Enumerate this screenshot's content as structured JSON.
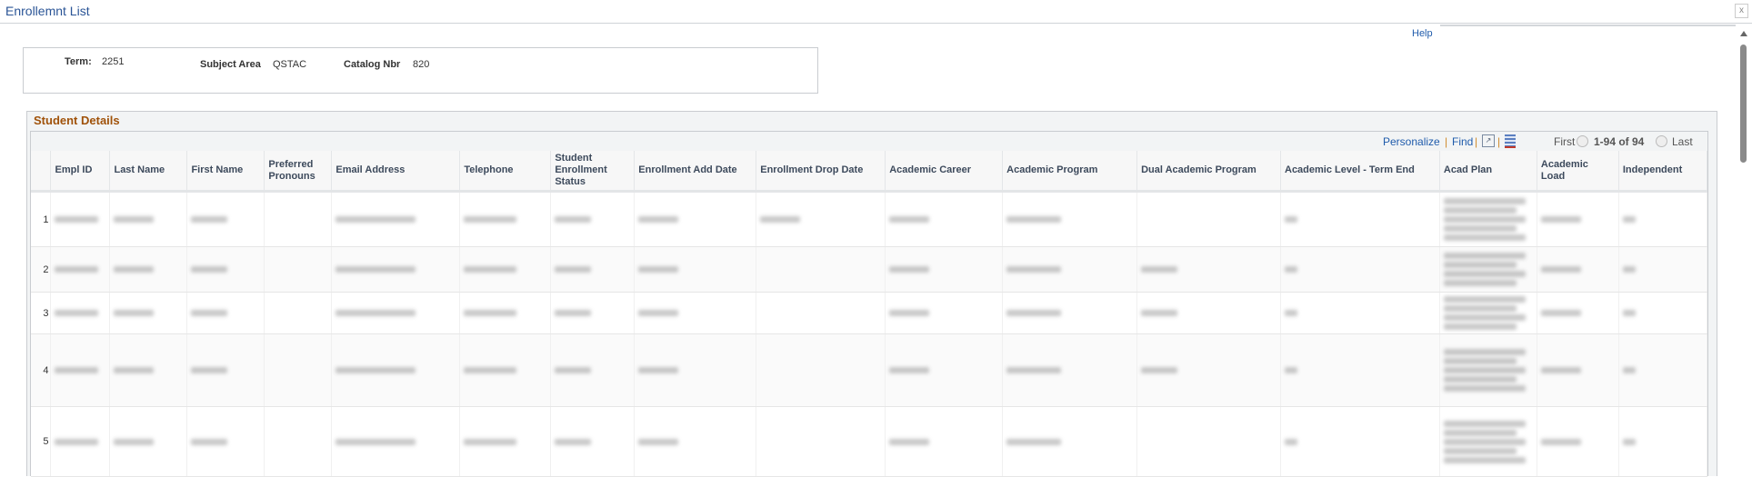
{
  "window": {
    "title": "Enrollemnt List",
    "close_label": "x",
    "help_label": "Help"
  },
  "criteria": {
    "term_label": "Term:",
    "term_value": "2251",
    "subject_label": "Subject Area",
    "subject_value": "QSTAC",
    "catalog_label": "Catalog Nbr",
    "catalog_value": "820"
  },
  "section": {
    "title": "Student Details"
  },
  "toolbar": {
    "personalize": "Personalize",
    "find": "Find",
    "first": "First",
    "range": "1-94 of 94",
    "last": "Last",
    "icons": [
      "zoom-view-icon",
      "download-spreadsheet-icon",
      "prev-arrow-icon",
      "next-arrow-icon"
    ]
  },
  "columns": [
    "",
    "Empl ID",
    "Last Name",
    "First Name",
    "Preferred Pronouns",
    "Email Address",
    "Telephone",
    "Student Enrollment Status",
    "Enrollment Add Date",
    "Enrollment Drop Date",
    "Academic Career",
    "Academic Program",
    "Dual Academic Program",
    "Academic Level - Term End",
    "Acad Plan",
    "Academic Load",
    "Independent"
  ],
  "rows": [
    {
      "num": "1",
      "redacted": [
        1,
        1,
        1,
        0,
        1,
        1,
        1,
        1,
        1,
        1,
        1,
        0,
        1,
        5,
        1,
        1
      ]
    },
    {
      "num": "2",
      "redacted": [
        1,
        1,
        1,
        0,
        1,
        1,
        1,
        1,
        0,
        1,
        1,
        1,
        1,
        4,
        1,
        1
      ]
    },
    {
      "num": "3",
      "redacted": [
        1,
        1,
        1,
        0,
        1,
        1,
        1,
        1,
        0,
        1,
        1,
        1,
        1,
        4,
        1,
        1
      ]
    },
    {
      "num": "4",
      "redacted": [
        1,
        1,
        1,
        0,
        1,
        1,
        1,
        1,
        0,
        1,
        1,
        1,
        1,
        5,
        1,
        1
      ]
    },
    {
      "num": "5",
      "redacted": [
        1,
        1,
        1,
        0,
        1,
        1,
        1,
        1,
        0,
        1,
        1,
        0,
        1,
        5,
        1,
        1
      ]
    }
  ]
}
